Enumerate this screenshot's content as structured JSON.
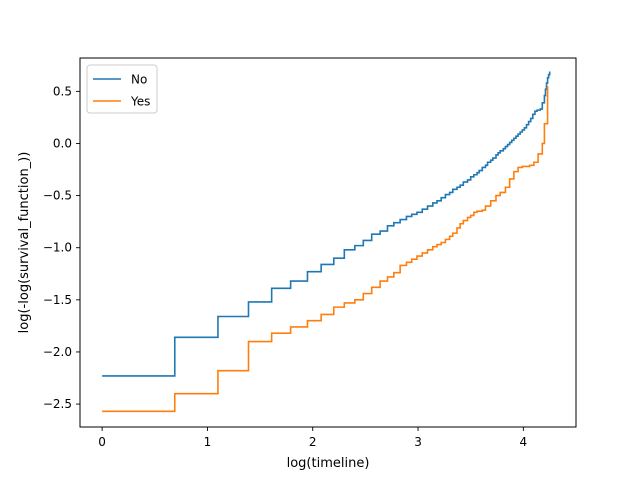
{
  "chart_data": {
    "type": "line",
    "title": "",
    "xlabel": "log(timeline)",
    "ylabel": "log(-log(survival_function_))",
    "xlim": [
      -0.21,
      4.5
    ],
    "ylim": [
      -2.72,
      0.82
    ],
    "xticks": [
      0,
      1,
      2,
      3,
      4
    ],
    "yticks": [
      -2.5,
      -2.0,
      -1.5,
      -1.0,
      -0.5,
      0.0,
      0.5
    ],
    "xtick_labels": [
      "0",
      "1",
      "2",
      "3",
      "4"
    ],
    "ytick_labels": [
      "−2.5",
      "−2.0",
      "−1.5",
      "−1.0",
      "−0.5",
      "0.0",
      "0.5"
    ],
    "grid": false,
    "legend_position": "upper-left",
    "series": [
      {
        "name": "No",
        "color": "#1f77b4",
        "step": true,
        "x": [
          0.0,
          0.69,
          1.1,
          1.39,
          1.61,
          1.79,
          1.95,
          2.08,
          2.2,
          2.3,
          2.4,
          2.48,
          2.56,
          2.64,
          2.71,
          2.77,
          2.83,
          2.89,
          2.94,
          2.99,
          3.04,
          3.09,
          3.14,
          3.18,
          3.22,
          3.26,
          3.3,
          3.33,
          3.37,
          3.4,
          3.43,
          3.47,
          3.5,
          3.53,
          3.56,
          3.58,
          3.61,
          3.64,
          3.66,
          3.69,
          3.71,
          3.74,
          3.76,
          3.78,
          3.81,
          3.83,
          3.85,
          3.87,
          3.89,
          3.91,
          3.93,
          3.95,
          3.97,
          3.99,
          4.01,
          4.03,
          4.05,
          4.07,
          4.09,
          4.11,
          4.13,
          4.16,
          4.18,
          4.2,
          4.21,
          4.22,
          4.23,
          4.24,
          4.25
        ],
        "y": [
          -2.23,
          -1.86,
          -1.66,
          -1.52,
          -1.39,
          -1.32,
          -1.23,
          -1.16,
          -1.1,
          -1.02,
          -0.98,
          -0.93,
          -0.87,
          -0.84,
          -0.79,
          -0.76,
          -0.73,
          -0.7,
          -0.68,
          -0.66,
          -0.63,
          -0.6,
          -0.57,
          -0.55,
          -0.52,
          -0.49,
          -0.47,
          -0.44,
          -0.42,
          -0.4,
          -0.37,
          -0.35,
          -0.32,
          -0.3,
          -0.28,
          -0.26,
          -0.23,
          -0.21,
          -0.18,
          -0.16,
          -0.14,
          -0.11,
          -0.09,
          -0.07,
          -0.05,
          -0.03,
          -0.01,
          0.01,
          0.03,
          0.05,
          0.07,
          0.09,
          0.11,
          0.13,
          0.15,
          0.18,
          0.21,
          0.24,
          0.28,
          0.31,
          0.32,
          0.33,
          0.39,
          0.46,
          0.52,
          0.58,
          0.63,
          0.66,
          0.69
        ]
      },
      {
        "name": "Yes",
        "color": "#ff7f0e",
        "step": true,
        "x": [
          0.0,
          0.69,
          1.1,
          1.39,
          1.61,
          1.79,
          1.95,
          2.08,
          2.2,
          2.3,
          2.4,
          2.48,
          2.56,
          2.64,
          2.71,
          2.77,
          2.83,
          2.89,
          2.94,
          2.99,
          3.04,
          3.09,
          3.14,
          3.18,
          3.22,
          3.26,
          3.3,
          3.33,
          3.37,
          3.4,
          3.43,
          3.47,
          3.5,
          3.53,
          3.56,
          3.61,
          3.64,
          3.69,
          3.74,
          3.78,
          3.83,
          3.87,
          3.91,
          3.95,
          3.99,
          4.06,
          4.1,
          4.14,
          4.18,
          4.2,
          4.23
        ],
        "y": [
          -2.57,
          -2.4,
          -2.18,
          -1.9,
          -1.82,
          -1.76,
          -1.7,
          -1.64,
          -1.57,
          -1.53,
          -1.5,
          -1.44,
          -1.38,
          -1.32,
          -1.28,
          -1.24,
          -1.17,
          -1.14,
          -1.11,
          -1.08,
          -1.05,
          -1.02,
          -0.99,
          -0.97,
          -0.95,
          -0.92,
          -0.89,
          -0.86,
          -0.81,
          -0.77,
          -0.74,
          -0.71,
          -0.69,
          -0.66,
          -0.65,
          -0.64,
          -0.6,
          -0.55,
          -0.5,
          -0.47,
          -0.42,
          -0.34,
          -0.27,
          -0.23,
          -0.22,
          -0.21,
          -0.18,
          -0.1,
          0.0,
          0.19,
          0.55
        ]
      }
    ]
  }
}
